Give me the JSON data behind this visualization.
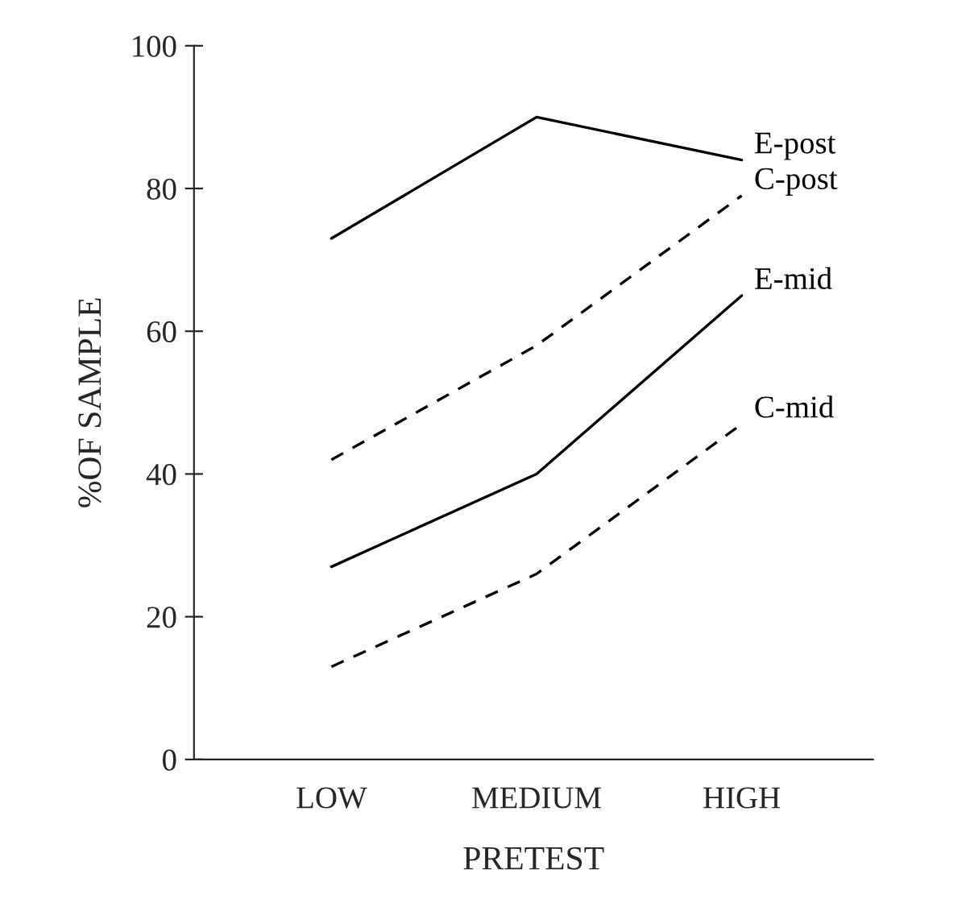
{
  "chart_data": {
    "type": "line",
    "xlabel": "PRETEST",
    "ylabel": "%OF SAMPLE",
    "categories": [
      "LOW",
      "MEDIUM",
      "HIGH"
    ],
    "ylim": [
      0,
      100
    ],
    "yticks": [
      0,
      20,
      40,
      60,
      80,
      100
    ],
    "grid": false,
    "legend": false,
    "marker": "none",
    "series": [
      {
        "name": "E-post",
        "color": "#000000",
        "line_style": "solid",
        "values": [
          73,
          90,
          84
        ]
      },
      {
        "name": "C-post",
        "color": "#000000",
        "line_style": "dashed",
        "values": [
          42,
          58,
          79
        ]
      },
      {
        "name": "E-mid",
        "color": "#000000",
        "line_style": "solid",
        "values": [
          27,
          40,
          65
        ]
      },
      {
        "name": "C-mid",
        "color": "#000000",
        "line_style": "dashed",
        "values": [
          13,
          26,
          47
        ]
      }
    ]
  }
}
